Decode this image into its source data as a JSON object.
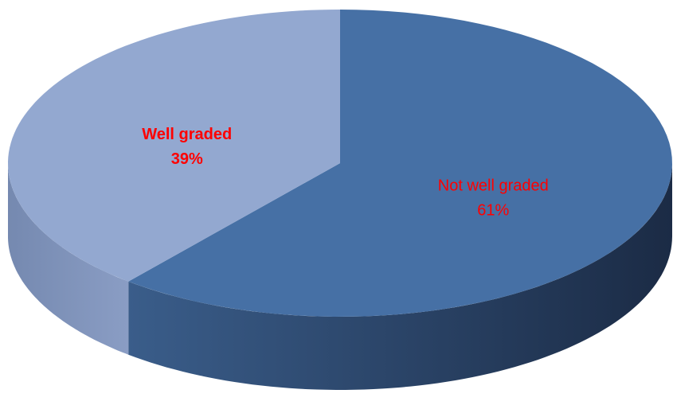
{
  "chart_data": {
    "type": "pie3d",
    "categories": [
      "Not well graded",
      "Well graded"
    ],
    "values": [
      61,
      39
    ],
    "value_labels": [
      "61%",
      "39%"
    ],
    "colors": [
      "#4670a5",
      "#93a8d0"
    ],
    "label_color": "#ff0000"
  }
}
